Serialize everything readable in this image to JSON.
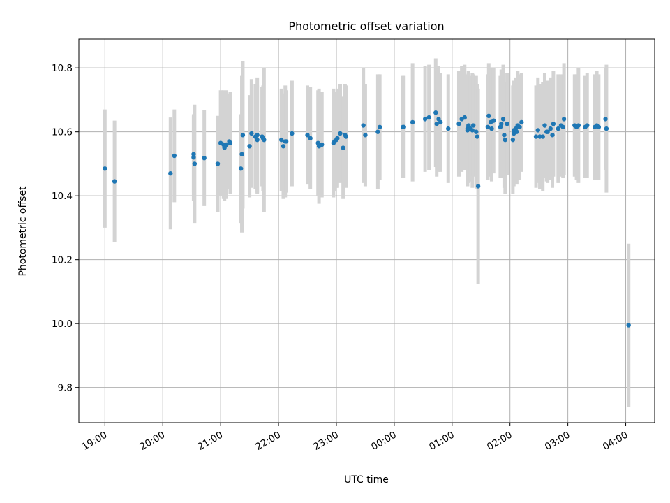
{
  "chart_data": {
    "type": "scatter",
    "title": "Photometric offset variation",
    "xlabel": "UTC time",
    "ylabel": "Photometric offset",
    "x_ticks": [
      "19:00",
      "20:00",
      "21:00",
      "22:00",
      "23:00",
      "00:00",
      "01:00",
      "02:00",
      "03:00",
      "04:00"
    ],
    "y_ticks": [
      "9.8",
      "10.0",
      "10.2",
      "10.4",
      "10.6",
      "10.8"
    ],
    "xlim": [
      "18:33",
      "04:30"
    ],
    "ylim": [
      9.69,
      10.89
    ],
    "grid": true,
    "colors": {
      "point": "#1f77b4",
      "errorbar": "#d3d3d3"
    },
    "series": [
      {
        "x": [
          "19:00",
          "19:10",
          "20:08",
          "20:12",
          "20:32",
          "20:32",
          "20:33",
          "20:43",
          "20:57",
          "21:00",
          "21:03",
          "21:04",
          "21:06",
          "21:09",
          "21:10",
          "21:21",
          "21:22",
          "21:23",
          "21:30",
          "21:32",
          "21:36",
          "21:38",
          "21:38",
          "21:43",
          "21:44",
          "21:45",
          "22:03",
          "22:05",
          "22:07",
          "22:08",
          "22:14",
          "22:30",
          "22:33",
          "22:41",
          "22:42",
          "22:45",
          "22:57",
          "22:58",
          "23:00",
          "23:01",
          "23:04",
          "23:07",
          "23:09",
          "23:10",
          "23:28",
          "23:30",
          "23:43",
          "23:45",
          "00:09",
          "00:10",
          "00:19",
          "00:32",
          "00:36",
          "00:43",
          "00:44",
          "00:46",
          "00:48",
          "00:56",
          "01:07",
          "01:10",
          "01:13",
          "01:16",
          "01:16",
          "01:17",
          "01:17",
          "01:19",
          "01:21",
          "01:22",
          "01:25",
          "01:26",
          "01:27",
          "01:37",
          "01:38",
          "01:40",
          "01:41",
          "01:43",
          "01:50",
          "01:51",
          "01:53",
          "01:54",
          "01:55",
          "01:57",
          "02:03",
          "02:04",
          "02:04",
          "02:06",
          "02:07",
          "02:08",
          "02:10",
          "02:12",
          "02:27",
          "02:29",
          "02:31",
          "02:34",
          "02:36",
          "02:38",
          "02:39",
          "02:42",
          "02:44",
          "02:45",
          "02:50",
          "02:53",
          "02:55",
          "02:56",
          "03:07",
          "03:09",
          "03:11",
          "03:18",
          "03:20",
          "03:28",
          "03:30",
          "03:32",
          "03:39",
          "03:40",
          "04:03"
        ],
        "y": [
          10.485,
          10.445,
          10.47,
          10.525,
          10.52,
          10.53,
          10.5,
          10.518,
          10.5,
          10.565,
          10.56,
          10.55,
          10.56,
          10.57,
          10.565,
          10.485,
          10.53,
          10.59,
          10.555,
          10.595,
          10.585,
          10.575,
          10.59,
          10.585,
          10.58,
          10.575,
          10.575,
          10.555,
          10.57,
          10.57,
          10.595,
          10.59,
          10.58,
          10.565,
          10.555,
          10.56,
          10.565,
          10.57,
          10.575,
          10.58,
          10.595,
          10.55,
          10.59,
          10.585,
          10.62,
          10.59,
          10.6,
          10.615,
          10.615,
          10.615,
          10.63,
          10.64,
          10.645,
          10.66,
          10.625,
          10.64,
          10.63,
          10.61,
          10.625,
          10.64,
          10.645,
          10.61,
          10.605,
          10.615,
          10.62,
          10.61,
          10.605,
          10.62,
          10.6,
          10.585,
          10.43,
          10.615,
          10.65,
          10.63,
          10.61,
          10.635,
          10.615,
          10.625,
          10.64,
          10.59,
          10.575,
          10.625,
          10.575,
          10.595,
          10.605,
          10.61,
          10.6,
          10.62,
          10.615,
          10.63,
          10.585,
          10.605,
          10.585,
          10.585,
          10.62,
          10.6,
          10.6,
          10.61,
          10.59,
          10.625,
          10.61,
          10.62,
          10.615,
          10.64,
          10.62,
          10.615,
          10.62,
          10.615,
          10.62,
          10.615,
          10.62,
          10.615,
          10.64,
          10.61,
          9.995
        ],
        "yerr": [
          0.185,
          0.19,
          0.175,
          0.145,
          0.135,
          0.12,
          0.185,
          0.15,
          0.15,
          0.165,
          0.17,
          0.165,
          0.17,
          0.15,
          0.16,
          0.17,
          0.245,
          0.23,
          0.16,
          0.17,
          0.165,
          0.17,
          0.18,
          0.155,
          0.165,
          0.225,
          0.16,
          0.165,
          0.175,
          0.16,
          0.165,
          0.155,
          0.16,
          0.165,
          0.18,
          0.165,
          0.17,
          0.155,
          0.15,
          0.155,
          0.155,
          0.16,
          0.16,
          0.16,
          0.18,
          0.16,
          0.18,
          0.165,
          0.16,
          0.16,
          0.185,
          0.165,
          0.165,
          0.17,
          0.165,
          0.165,
          0.155,
          0.17,
          0.165,
          0.165,
          0.165,
          0.155,
          0.175,
          0.175,
          0.165,
          0.165,
          0.18,
          0.16,
          0.175,
          0.165,
          0.305,
          0.165,
          0.165,
          0.17,
          0.165,
          0.165,
          0.16,
          0.17,
          0.17,
          0.165,
          0.17,
          0.16,
          0.17,
          0.165,
          0.155,
          0.16,
          0.165,
          0.17,
          0.165,
          0.155,
          0.16,
          0.165,
          0.165,
          0.17,
          0.165,
          0.155,
          0.16,
          0.16,
          0.165,
          0.165,
          0.17,
          0.16,
          0.16,
          0.175,
          0.16,
          0.165,
          0.18,
          0.16,
          0.165,
          0.165,
          0.17,
          0.165,
          0.16,
          0.2,
          0.255
        ]
      }
    ]
  }
}
